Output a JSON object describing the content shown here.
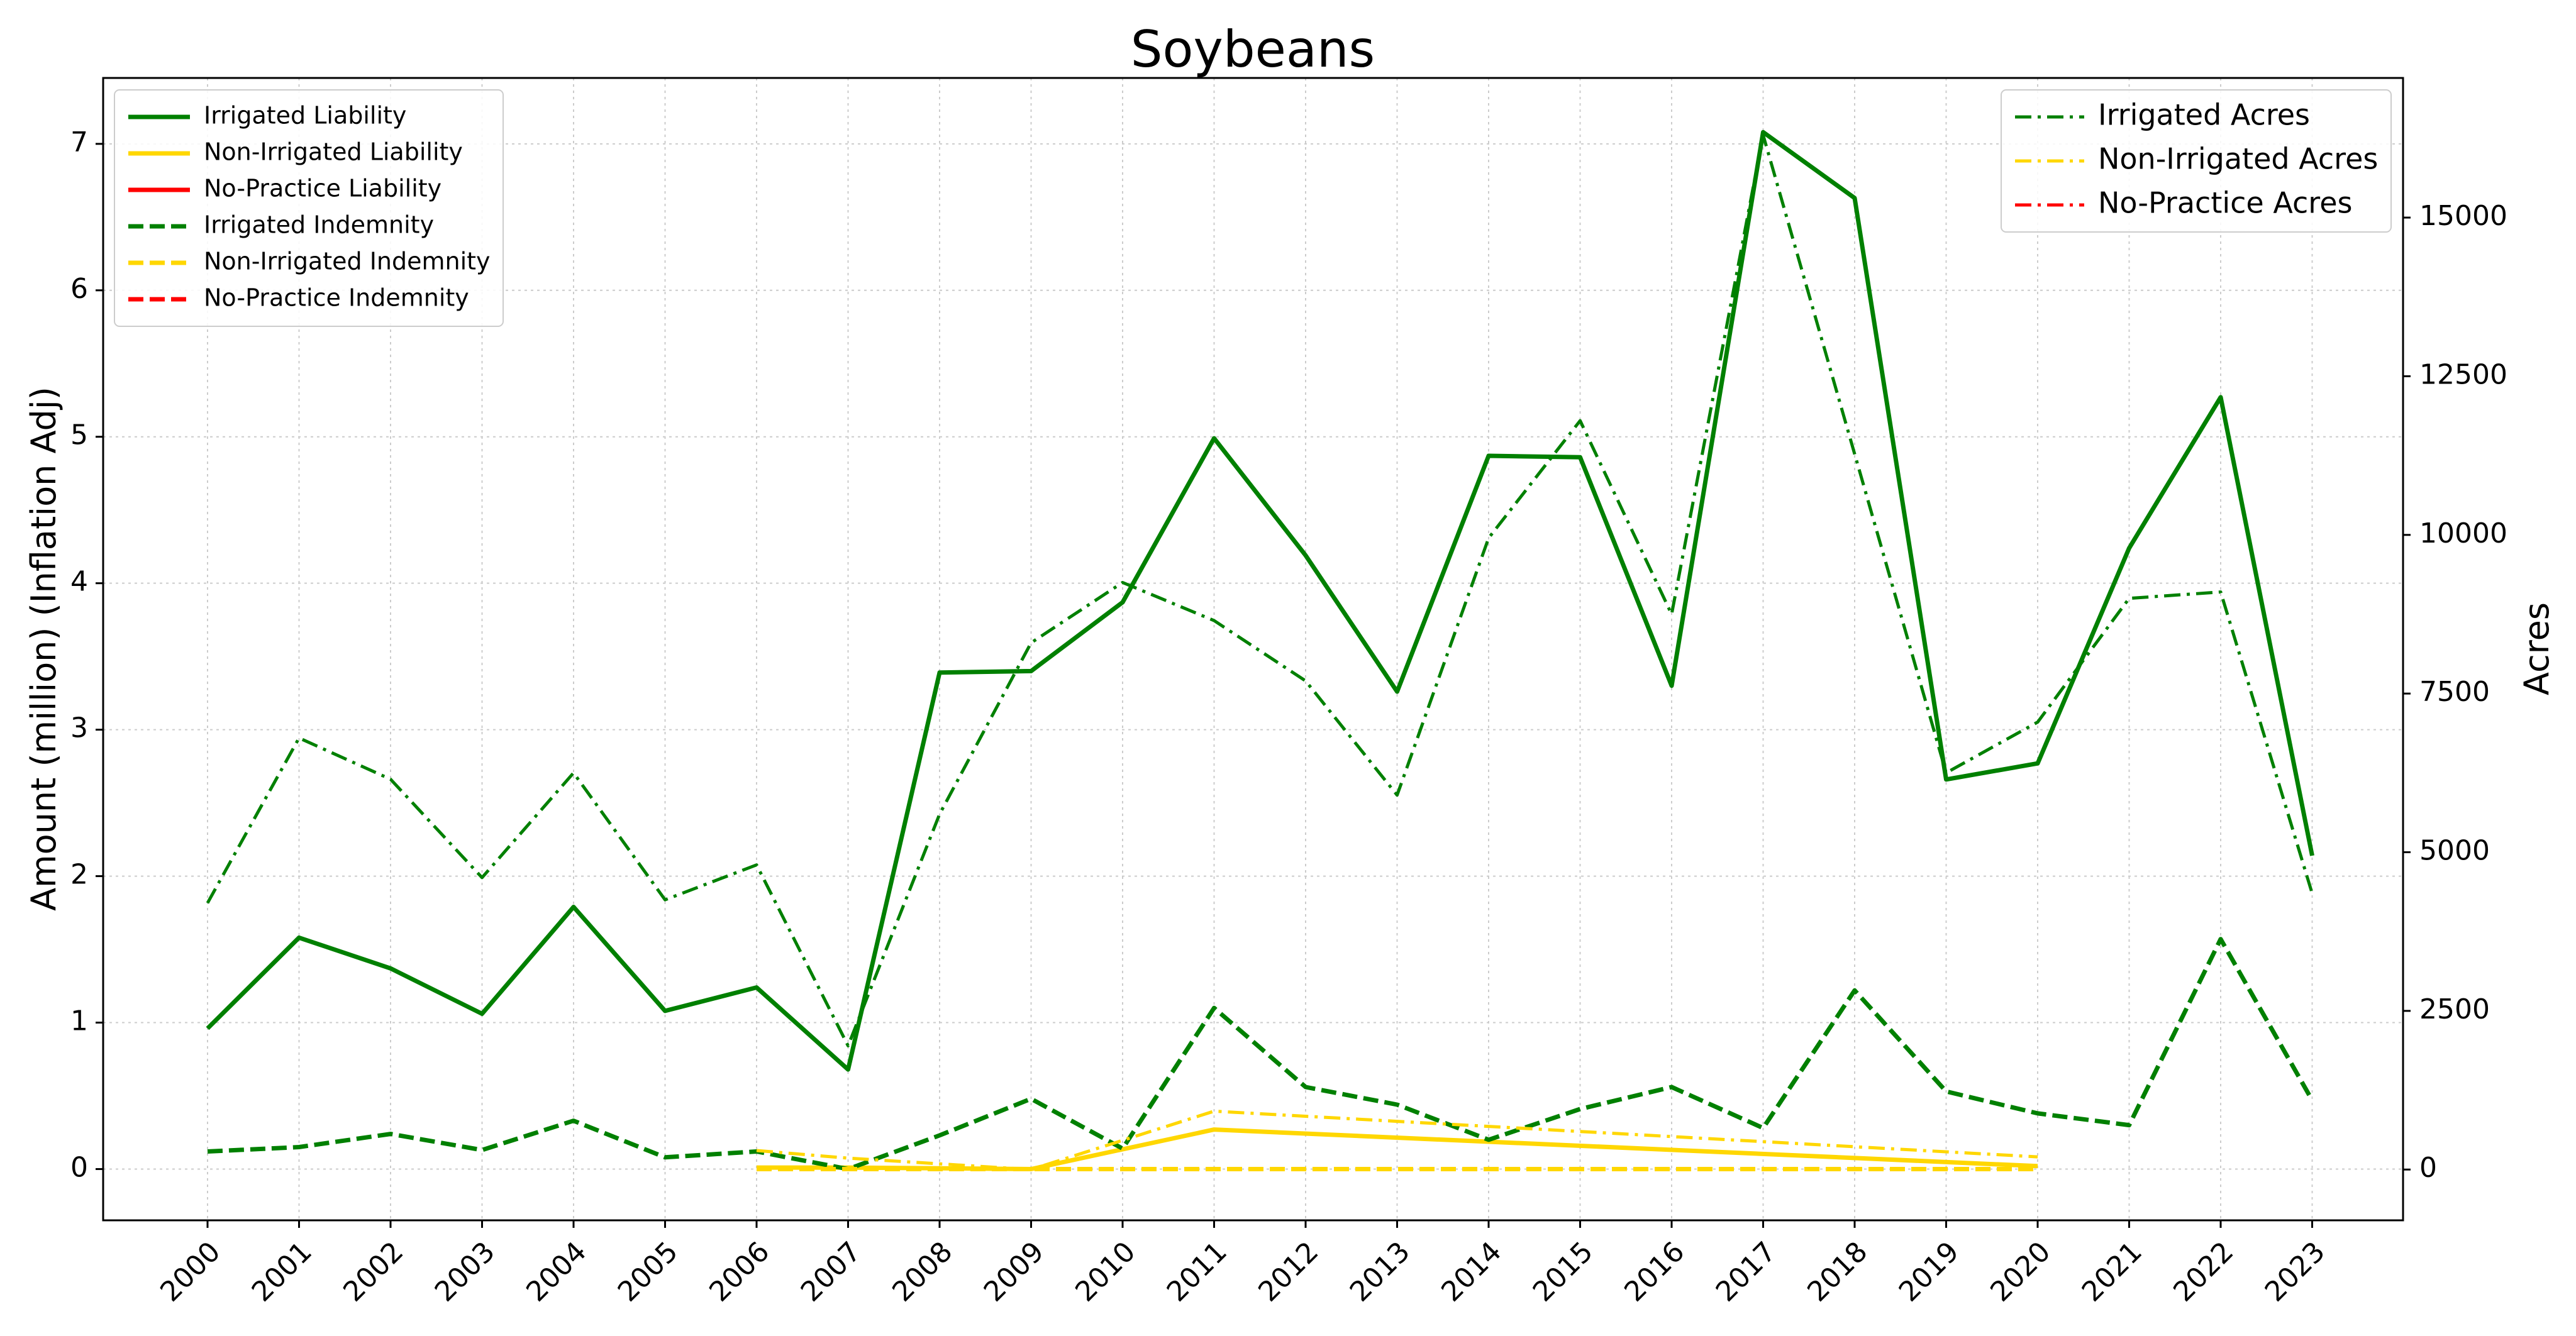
{
  "chart_data": {
    "type": "line",
    "title": "Soybeans",
    "ylabel": "Amount (million) (Inflation Adj)",
    "y2label": "Acres",
    "xlabel": "",
    "ylim": [
      -0.35,
      7.45
    ],
    "y2lim": [
      -800,
      17200
    ],
    "yticks": [
      0,
      1,
      2,
      3,
      4,
      5,
      6,
      7
    ],
    "y2ticks": [
      0,
      2500,
      5000,
      7500,
      10000,
      12500,
      15000
    ],
    "grid": true,
    "legend_left_position": "top-left",
    "legend_right_position": "top-right",
    "categories": [
      "2000",
      "2001",
      "2002",
      "2003",
      "2004",
      "2005",
      "2006",
      "2007",
      "2008",
      "2009",
      "2010",
      "2011",
      "2012",
      "2013",
      "2014",
      "2015",
      "2016",
      "2017",
      "2018",
      "2019",
      "2020",
      "2021",
      "2022",
      "2023"
    ],
    "series": [
      {
        "name": "Irrigated Liability",
        "axis": "left",
        "color": "#008000",
        "style": "solid",
        "values": [
          0.96,
          1.58,
          1.37,
          1.06,
          1.79,
          1.08,
          1.24,
          0.68,
          3.39,
          3.4,
          3.87,
          4.99,
          4.19,
          3.26,
          4.87,
          4.86,
          3.3,
          7.08,
          6.63,
          2.66,
          2.77,
          4.24,
          5.27,
          2.14
        ]
      },
      {
        "name": "Non-Irrigated Liability",
        "axis": "left",
        "color": "#FFD700",
        "style": "solid",
        "values": [
          null,
          null,
          null,
          null,
          null,
          null,
          0.01,
          0.01,
          null,
          0.0,
          null,
          0.27,
          null,
          null,
          null,
          null,
          null,
          null,
          null,
          null,
          0.02,
          null,
          null,
          null
        ]
      },
      {
        "name": "No-Practice Liability",
        "axis": "left",
        "color": "#FF0000",
        "style": "solid",
        "values": [
          null,
          null,
          null,
          null,
          null,
          null,
          null,
          null,
          null,
          null,
          null,
          null,
          null,
          null,
          null,
          null,
          null,
          null,
          null,
          null,
          null,
          null,
          null,
          null
        ]
      },
      {
        "name": "Irrigated Indemnity",
        "axis": "left",
        "color": "#008000",
        "style": "dashed",
        "values": [
          0.12,
          0.15,
          0.24,
          0.13,
          0.33,
          0.08,
          0.12,
          0.0,
          0.23,
          0.48,
          0.14,
          1.1,
          0.56,
          0.44,
          0.2,
          0.41,
          0.56,
          0.28,
          1.22,
          0.53,
          0.38,
          0.3,
          1.57,
          0.47
        ]
      },
      {
        "name": "Non-Irrigated Indemnity",
        "axis": "left",
        "color": "#FFD700",
        "style": "dashed",
        "values": [
          null,
          null,
          null,
          null,
          null,
          null,
          0.0,
          0.0,
          null,
          0.0,
          null,
          0.0,
          null,
          null,
          null,
          null,
          null,
          null,
          null,
          null,
          0.0,
          null,
          null,
          null
        ]
      },
      {
        "name": "No-Practice Indemnity",
        "axis": "left",
        "color": "#FF0000",
        "style": "dashed",
        "values": [
          null,
          null,
          null,
          null,
          null,
          null,
          null,
          null,
          null,
          null,
          null,
          null,
          null,
          null,
          null,
          null,
          null,
          null,
          null,
          null,
          null,
          null,
          null,
          null
        ]
      },
      {
        "name": "Irrigated Acres",
        "axis": "right",
        "color": "#008000",
        "style": "dashdot",
        "values": [
          4200,
          6800,
          6150,
          4600,
          6250,
          4250,
          4800,
          1950,
          5600,
          8300,
          9250,
          8650,
          7700,
          5900,
          9950,
          11800,
          8750,
          16300,
          null,
          6250,
          7050,
          9000,
          9100,
          4350
        ]
      },
      {
        "name": "Non-Irrigated Acres",
        "axis": "right",
        "color": "#FFD700",
        "style": "dashdot",
        "values": [
          null,
          null,
          null,
          null,
          null,
          null,
          300,
          180,
          null,
          0,
          null,
          920,
          null,
          null,
          null,
          null,
          null,
          null,
          null,
          null,
          200,
          null,
          null,
          null
        ]
      },
      {
        "name": "No-Practice Acres",
        "axis": "right",
        "color": "#FF0000",
        "style": "dashdot",
        "values": [
          null,
          null,
          null,
          null,
          null,
          null,
          null,
          null,
          null,
          null,
          null,
          null,
          null,
          null,
          null,
          null,
          null,
          null,
          null,
          null,
          null,
          null,
          null,
          null
        ]
      }
    ]
  }
}
